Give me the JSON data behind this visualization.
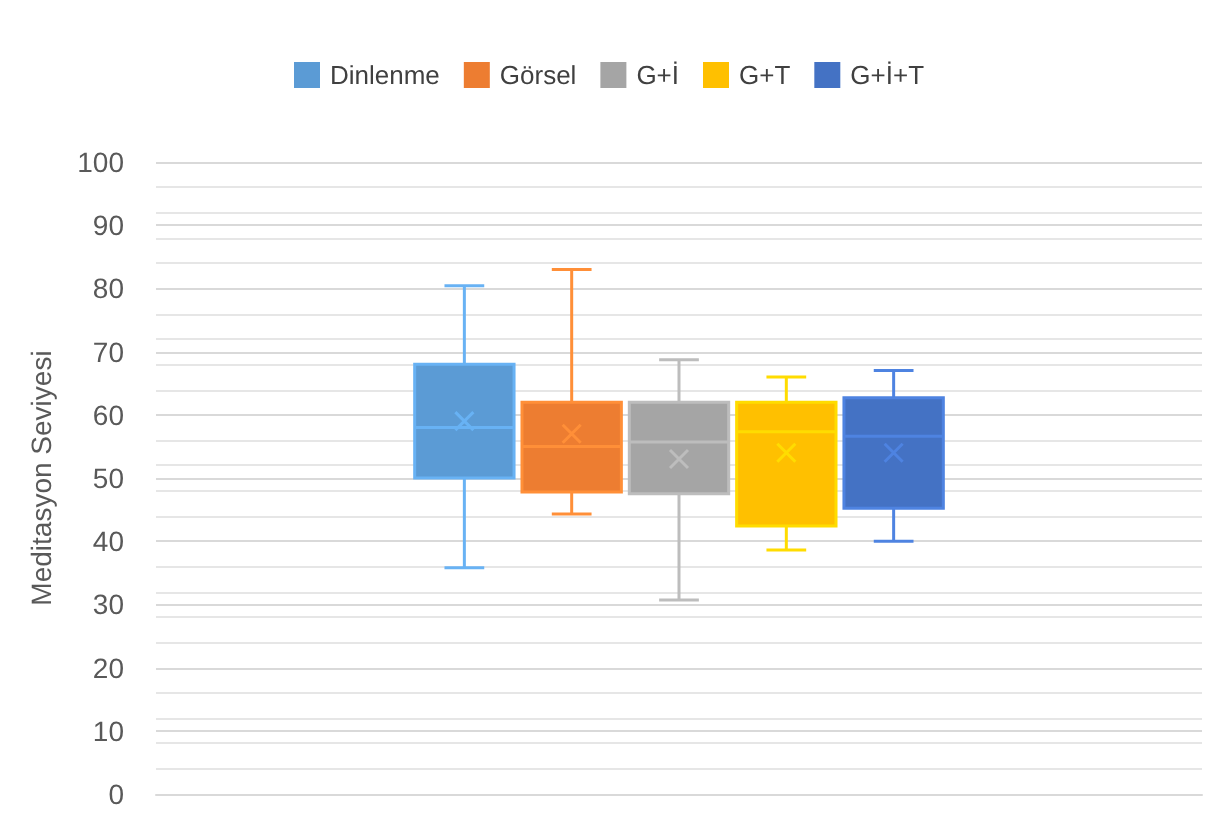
{
  "chart_data": {
    "type": "box",
    "ylabel": "Meditasyon Seviyesi",
    "categories": [
      null
    ],
    "series": [
      {
        "name": "Dinlenme",
        "color": "#5b9bd5",
        "boxes": [
          {
            "low": 35.8,
            "q1": 50,
            "median": 58,
            "q3": 68,
            "high": 80.4,
            "mean": 59
          }
        ]
      },
      {
        "name": "Görsel",
        "color": "#ed7d31",
        "boxes": [
          {
            "low": 44.3,
            "q1": 47.8,
            "median": 55,
            "q3": 62,
            "high": 83,
            "mean": 57
          }
        ]
      },
      {
        "name": "G+İ",
        "color": "#a5a5a5",
        "boxes": [
          {
            "low": 30.7,
            "q1": 47.5,
            "median": 55.7,
            "q3": 62,
            "high": 68.7,
            "mean": 53
          }
        ]
      },
      {
        "name": "G+T",
        "color": "#ffc000",
        "boxes": [
          {
            "low": 38.6,
            "q1": 42.4,
            "median": 57.3,
            "q3": 62,
            "high": 66,
            "mean": 54
          }
        ]
      },
      {
        "name": "G+İ+T",
        "color": "#4472c4",
        "boxes": [
          {
            "low": 40,
            "q1": 45.2,
            "median": 56.6,
            "q3": 62.7,
            "high": 67,
            "mean": 54
          }
        ]
      }
    ],
    "ylim": [
      0,
      100
    ],
    "yticks": [
      0,
      10,
      20,
      30,
      40,
      50,
      60,
      70,
      80,
      90,
      100
    ],
    "grid": true,
    "legend": "top",
    "tick_labels": "y"
  }
}
